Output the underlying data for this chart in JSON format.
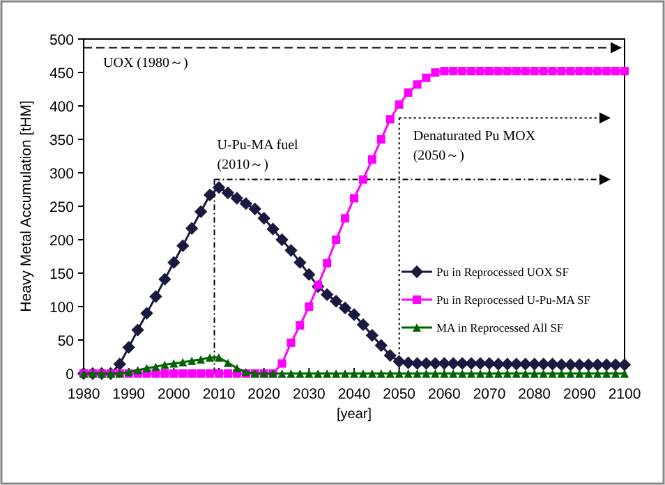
{
  "chart_data": {
    "type": "line",
    "xlabel": "[year]",
    "ylabel": "Heavy Metal Accumulation [tHM]",
    "x": [
      1980,
      1982,
      1984,
      1986,
      1988,
      1990,
      1992,
      1994,
      1996,
      1998,
      2000,
      2002,
      2004,
      2006,
      2008,
      2010,
      2012,
      2014,
      2016,
      2018,
      2020,
      2022,
      2024,
      2026,
      2028,
      2030,
      2032,
      2034,
      2036,
      2038,
      2040,
      2042,
      2044,
      2046,
      2048,
      2050,
      2052,
      2054,
      2056,
      2058,
      2060,
      2062,
      2064,
      2066,
      2068,
      2070,
      2072,
      2074,
      2076,
      2078,
      2080,
      2082,
      2084,
      2086,
      2088,
      2090,
      2092,
      2094,
      2096,
      2098,
      2100
    ],
    "series": [
      {
        "name": "Pu in Reprocessed UOX SF",
        "color": "#1a1a40",
        "marker": "diamond",
        "values": [
          0,
          0,
          0,
          0,
          14,
          39,
          65,
          90,
          115,
          141,
          166,
          191,
          217,
          242,
          267,
          278,
          270,
          262,
          254,
          246,
          232,
          216,
          200,
          184,
          166,
          148,
          130,
          118,
          108,
          98,
          88,
          73,
          57,
          42,
          27,
          18,
          16,
          15,
          15,
          15,
          15,
          15,
          15,
          15,
          15,
          15,
          14,
          14,
          14,
          14,
          14,
          14,
          14,
          13,
          13,
          13,
          13,
          13,
          13,
          13,
          13
        ]
      },
      {
        "name": "Pu in Reprocessed U-Pu-MA SF",
        "color": "#ff00ff",
        "marker": "square",
        "values": [
          0,
          0,
          0,
          0,
          0,
          0,
          0,
          0,
          0,
          0,
          0,
          0,
          0,
          0,
          0,
          0,
          0,
          0,
          0,
          0,
          0,
          0,
          15,
          46,
          72,
          100,
          132,
          165,
          200,
          232,
          262,
          290,
          320,
          350,
          380,
          402,
          420,
          432,
          442,
          450,
          452,
          452,
          452,
          452,
          452,
          452,
          452,
          452,
          452,
          452,
          452,
          452,
          452,
          452,
          452,
          452,
          452,
          452,
          452,
          452,
          452
        ]
      },
      {
        "name": "MA in Reprocessed All SF",
        "color": "#006400",
        "marker": "triangle",
        "values": [
          0,
          0,
          0,
          0,
          0,
          2,
          5,
          8,
          10,
          13,
          15,
          17,
          19,
          21,
          24,
          24,
          16,
          8,
          2,
          0,
          0,
          0,
          0,
          0,
          0,
          0,
          0,
          0,
          0,
          0,
          0,
          0,
          0,
          0,
          0,
          0,
          0,
          0,
          0,
          0,
          0,
          0,
          0,
          0,
          0,
          0,
          0,
          0,
          0,
          0,
          0,
          0,
          0,
          0,
          0,
          0,
          0,
          0,
          0,
          0,
          0
        ]
      }
    ],
    "xlim": [
      1980,
      2100
    ],
    "xticks": [
      1980,
      1990,
      2000,
      2010,
      2020,
      2030,
      2040,
      2050,
      2060,
      2070,
      2080,
      2090,
      2100
    ],
    "ylim": [
      0,
      500
    ],
    "yticks": [
      0,
      50,
      100,
      150,
      200,
      250,
      300,
      350,
      400,
      450,
      500
    ],
    "ref_lines": [
      {
        "axis": "y",
        "value": 487,
        "label": "UOX (1980～)",
        "line_style": "dashed"
      }
    ],
    "annotations": [
      {
        "text": "U-Pu-MA fuel (2010～)",
        "x": 2009,
        "y": 290
      },
      {
        "text": "Denaturated Pu MOX (2050～)",
        "x": 2050,
        "y": 382
      }
    ],
    "legend": "right",
    "line_style": "solid"
  }
}
